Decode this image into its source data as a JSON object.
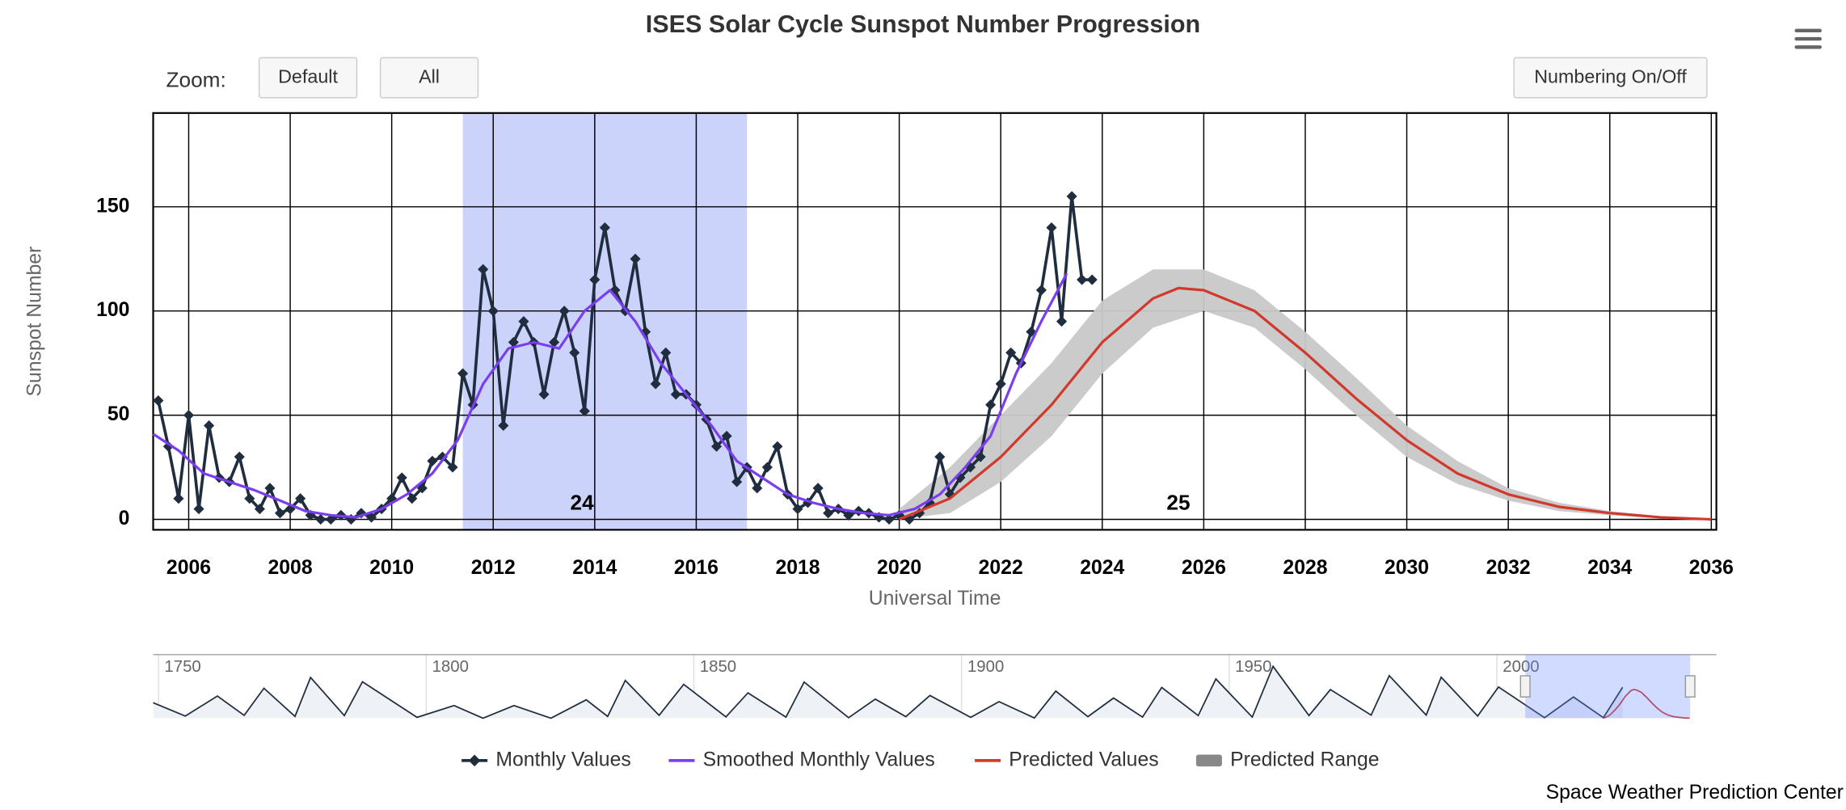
{
  "chart_data": {
    "type": "line",
    "title": "ISES Solar Cycle Sunspot Number Progression",
    "zoom_label": "Zoom:",
    "buttons": [
      "Default",
      "All"
    ],
    "numbering_button": "Numbering On/Off",
    "credits": "Space Weather Prediction Center",
    "x_label": "Universal Time",
    "y_label": "Sunspot Number",
    "xlim": [
      2005.3,
      2036.1
    ],
    "ylim": [
      -5,
      195
    ],
    "xticks": [
      2006,
      2008,
      2010,
      2012,
      2014,
      2016,
      2018,
      2020,
      2022,
      2024,
      2026,
      2028,
      2030,
      2032,
      2034,
      2036
    ],
    "yticks": [
      0,
      50,
      100,
      150
    ],
    "grid": true,
    "cycles": [
      {
        "label": "24",
        "x": 2013.75,
        "band": [
          2011.4,
          2017.0
        ],
        "band_color": "#ccd3fb"
      },
      {
        "label": "25",
        "x": 2025.5
      }
    ],
    "series": [
      {
        "name": "Monthly Values",
        "color": "#1f2d3f",
        "x": [
          2005.4,
          2005.6,
          2005.8,
          2006.0,
          2006.2,
          2006.4,
          2006.6,
          2006.8,
          2007.0,
          2007.2,
          2007.4,
          2007.6,
          2007.8,
          2008.0,
          2008.2,
          2008.4,
          2008.6,
          2008.8,
          2009.0,
          2009.2,
          2009.4,
          2009.6,
          2009.8,
          2010.0,
          2010.2,
          2010.4,
          2010.6,
          2010.8,
          2011.0,
          2011.2,
          2011.4,
          2011.6,
          2011.8,
          2012.0,
          2012.2,
          2012.4,
          2012.6,
          2012.8,
          2013.0,
          2013.2,
          2013.4,
          2013.6,
          2013.8,
          2014.0,
          2014.2,
          2014.4,
          2014.6,
          2014.8,
          2015.0,
          2015.2,
          2015.4,
          2015.6,
          2015.8,
          2016.0,
          2016.2,
          2016.4,
          2016.6,
          2016.8,
          2017.0,
          2017.2,
          2017.4,
          2017.6,
          2017.8,
          2018.0,
          2018.2,
          2018.4,
          2018.6,
          2018.8,
          2019.0,
          2019.2,
          2019.4,
          2019.6,
          2019.8,
          2020.0,
          2020.2,
          2020.4,
          2020.6,
          2020.8,
          2021.0,
          2021.2,
          2021.4,
          2021.6,
          2021.8,
          2022.0,
          2022.2,
          2022.4,
          2022.6,
          2022.8,
          2023.0,
          2023.2,
          2023.4,
          2023.6,
          2023.8
        ],
        "values": [
          57,
          35,
          10,
          50,
          5,
          45,
          20,
          18,
          30,
          10,
          5,
          15,
          3,
          5,
          10,
          2,
          0,
          0,
          2,
          0,
          3,
          1,
          5,
          10,
          20,
          10,
          15,
          28,
          30,
          25,
          70,
          55,
          120,
          100,
          45,
          85,
          95,
          85,
          60,
          85,
          100,
          80,
          52,
          115,
          140,
          110,
          100,
          125,
          90,
          65,
          80,
          60,
          60,
          55,
          48,
          35,
          40,
          18,
          25,
          15,
          25,
          35,
          12,
          5,
          8,
          15,
          3,
          5,
          2,
          4,
          3,
          1,
          0,
          2,
          0,
          3,
          8,
          30,
          12,
          20,
          25,
          30,
          55,
          65,
          80,
          75,
          90,
          110,
          140,
          95,
          155,
          115,
          115
        ]
      },
      {
        "name": "Smoothed Monthly Values",
        "color": "#7a3df0",
        "x": [
          2005.3,
          2005.8,
          2006.3,
          2006.8,
          2007.3,
          2007.8,
          2008.3,
          2008.8,
          2009.3,
          2009.8,
          2010.3,
          2010.8,
          2011.3,
          2011.8,
          2012.3,
          2012.8,
          2013.3,
          2013.8,
          2014.3,
          2014.8,
          2015.3,
          2015.8,
          2016.3,
          2016.8,
          2017.3,
          2017.8,
          2018.3,
          2018.8,
          2019.3,
          2019.8,
          2020.3,
          2020.8,
          2021.3,
          2021.8,
          2022.3,
          2022.8,
          2023.3
        ],
        "values": [
          41,
          33,
          22,
          18,
          14,
          9,
          4,
          2,
          1,
          5,
          12,
          22,
          38,
          65,
          82,
          85,
          82,
          100,
          110,
          95,
          75,
          60,
          45,
          28,
          20,
          12,
          8,
          5,
          3,
          2,
          5,
          12,
          25,
          40,
          70,
          95,
          118
        ]
      },
      {
        "name": "Predicted Values",
        "color": "#d0392b",
        "x": [
          2020,
          2021,
          2022,
          2023,
          2024,
          2025,
          2025.5,
          2026,
          2027,
          2028,
          2029,
          2030,
          2031,
          2032,
          2033,
          2034,
          2035,
          2036
        ],
        "values": [
          0,
          10,
          30,
          55,
          85,
          106,
          111,
          110,
          100,
          80,
          58,
          38,
          22,
          12,
          6,
          3,
          1,
          0
        ]
      },
      {
        "name": "Predicted Range",
        "color": "#c8c8c8",
        "x": [
          2020,
          2021,
          2022,
          2023,
          2024,
          2025,
          2026,
          2027,
          2028,
          2029,
          2030,
          2031,
          2032,
          2033,
          2034,
          2035,
          2036
        ],
        "low": [
          0,
          3,
          18,
          40,
          70,
          92,
          100,
          92,
          72,
          50,
          30,
          17,
          9,
          4,
          2,
          0.5,
          0
        ],
        "high": [
          5,
          25,
          50,
          75,
          105,
          120,
          120,
          110,
          90,
          68,
          45,
          28,
          15,
          8,
          4,
          1.5,
          0.5
        ]
      }
    ],
    "navigator": {
      "color": "#1f2d3f",
      "xlim": [
        1749,
        2041
      ],
      "ylim": [
        0,
        210
      ],
      "xticks": [
        1750,
        1800,
        1850,
        1900,
        1950,
        2000
      ],
      "x": [
        1749,
        1755,
        1761,
        1766,
        1769.7,
        1775.5,
        1778.4,
        1784.7,
        1788.1,
        1798.3,
        1805.2,
        1810.6,
        1816.4,
        1823.3,
        1829.9,
        1833.9,
        1837.2,
        1843.5,
        1848.1,
        1856,
        1860.1,
        1867.2,
        1870.6,
        1878.9,
        1883.9,
        1889.6,
        1894.1,
        1901.7,
        1907,
        1913.6,
        1917.6,
        1923.6,
        1928.4,
        1933.8,
        1937.4,
        1944.2,
        1947.5,
        1954.3,
        1958.2,
        1964.9,
        1968.9,
        1976.5,
        1979.9,
        1986.8,
        1989.6,
        1996.4,
        2000.3,
        2008.9,
        2014.3,
        2019.9,
        2023.5
      ],
      "values": [
        60,
        8,
        86,
        11,
        116,
        7,
        158,
        10,
        141,
        3,
        49,
        0,
        49,
        0,
        71,
        7,
        146,
        11,
        131,
        5,
        98,
        4,
        140,
        2,
        74,
        6,
        88,
        3,
        64,
        1,
        105,
        6,
        78,
        4,
        119,
        10,
        152,
        4,
        201,
        10,
        111,
        12,
        165,
        12,
        159,
        8,
        121,
        2,
        82,
        2,
        120
      ]
    }
  }
}
